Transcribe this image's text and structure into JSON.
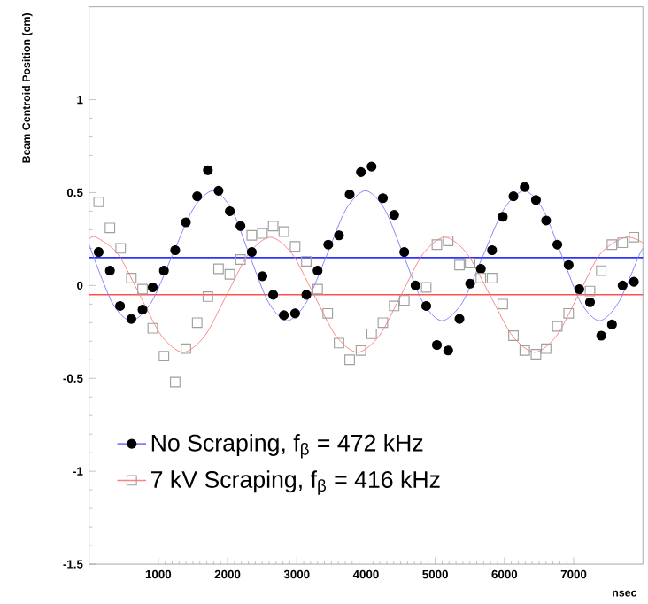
{
  "chart_data": {
    "type": "scatter",
    "ylabel": "Beam Centroid Position (cm)",
    "xlabel": "nsec",
    "xlim": [
      0,
      8000
    ],
    "ylim": [
      -1.5,
      1.5
    ],
    "xticks": [
      1000,
      2000,
      3000,
      4000,
      5000,
      6000,
      7000
    ],
    "yticks": [
      -1.5,
      -1,
      -0.5,
      0,
      0.5,
      1
    ],
    "grid": false,
    "legend": "bottom left",
    "series": [
      {
        "name": "No Scraping, f$_{β}$ = 472 kHz",
        "marker": "circle",
        "color": "#000000",
        "x": [
          138,
          301,
          447,
          610,
          772,
          919,
          1081,
          1244,
          1398,
          1561,
          1716,
          1870,
          2033,
          2187,
          2350,
          2504,
          2659,
          2813,
          2976,
          3138,
          3301,
          3455,
          3610,
          3764,
          3927,
          4081,
          4244,
          4407,
          4553,
          4715,
          4870,
          5024,
          5187,
          5350,
          5504,
          5659,
          5821,
          5976,
          6130,
          6293,
          6455,
          6602,
          6764,
          6927,
          7081,
          7236,
          7398,
          7553,
          7707,
          7870
        ],
        "values": [
          0.18,
          0.08,
          -0.11,
          -0.18,
          -0.13,
          -0.01,
          0.08,
          0.19,
          0.34,
          0.48,
          0.62,
          0.51,
          0.4,
          0.32,
          0.18,
          0.05,
          -0.05,
          -0.16,
          -0.15,
          -0.05,
          0.08,
          0.22,
          0.27,
          0.49,
          0.61,
          0.64,
          0.47,
          0.38,
          0.18,
          0.0,
          -0.11,
          -0.32,
          -0.35,
          -0.18,
          0.01,
          0.09,
          0.19,
          0.37,
          0.48,
          0.53,
          0.46,
          0.35,
          0.22,
          0.11,
          -0.02,
          -0.09,
          -0.27,
          -0.21,
          0.0,
          0.02
        ]
      },
      {
        "name": "7 kV Scraping, f$_{β}$ = 416 kHz",
        "marker": "square",
        "color": "#a0a0a0",
        "x": [
          138,
          301,
          455,
          610,
          772,
          919,
          1081,
          1244,
          1398,
          1561,
          1716,
          1870,
          2033,
          2187,
          2350,
          2504,
          2659,
          2813,
          2976,
          3138,
          3301,
          3447,
          3610,
          3764,
          3927,
          4081,
          4244,
          4407,
          4553,
          4870,
          5024,
          5187,
          5350,
          5504,
          5659,
          5821,
          5976,
          6130,
          6293,
          6455,
          6602,
          6764,
          6927,
          7236,
          7398,
          7553,
          7707,
          7870
        ],
        "values": [
          0.45,
          0.31,
          0.2,
          0.04,
          -0.02,
          -0.23,
          -0.38,
          -0.52,
          -0.34,
          -0.2,
          -0.06,
          0.09,
          0.06,
          0.14,
          0.27,
          0.28,
          0.32,
          0.29,
          0.21,
          0.13,
          -0.02,
          -0.15,
          -0.31,
          -0.4,
          -0.35,
          -0.26,
          -0.2,
          -0.11,
          -0.08,
          -0.01,
          0.22,
          0.24,
          0.11,
          0.12,
          0.04,
          0.04,
          -0.1,
          -0.27,
          -0.35,
          -0.37,
          -0.34,
          -0.22,
          -0.15,
          -0.03,
          0.08,
          0.22,
          0.23,
          0.26
        ]
      },
      {
        "type": "line",
        "color": "#8080ff",
        "x": [
          0,
          330,
          610,
          900,
          1200,
          1500,
          1788,
          2060,
          2320,
          2590,
          2861,
          3140,
          3430,
          3710,
          3993,
          4270,
          4545,
          4820,
          5098,
          5395,
          5690,
          5990,
          6285,
          6555,
          6830,
          7100,
          7373,
          7650,
          7943,
          8000
        ],
        "values": [
          0.22,
          -0.09,
          -0.19,
          -0.09,
          0.16,
          0.41,
          0.51,
          0.41,
          0.16,
          -0.09,
          -0.19,
          -0.09,
          0.16,
          0.41,
          0.51,
          0.41,
          0.16,
          -0.09,
          -0.19,
          -0.09,
          0.16,
          0.41,
          0.51,
          0.41,
          0.16,
          -0.09,
          -0.19,
          -0.09,
          0.16,
          0.2
        ]
      },
      {
        "type": "line",
        "color": "#ff8080",
        "x": [
          0,
          100,
          415,
          730,
          1045,
          1358,
          1673,
          1988,
          2303,
          2618,
          2933,
          3248,
          3563,
          3878,
          4193,
          4508,
          4823,
          5138,
          5463,
          5788,
          6113,
          6439,
          6754,
          7069,
          7384,
          7750,
          8000
        ],
        "values": [
          0.25,
          0.26,
          0.17,
          -0.05,
          -0.27,
          -0.36,
          -0.27,
          -0.05,
          0.17,
          0.26,
          0.17,
          -0.05,
          -0.27,
          -0.36,
          -0.27,
          -0.05,
          0.17,
          0.26,
          0.17,
          -0.05,
          -0.27,
          -0.36,
          -0.27,
          -0.05,
          0.17,
          0.26,
          0.23
        ]
      }
    ],
    "ref_lines": [
      {
        "axis": "y",
        "value": 0.15,
        "color": "#3030ff"
      },
      {
        "axis": "y",
        "value": -0.05,
        "color": "#ff5050"
      }
    ]
  }
}
